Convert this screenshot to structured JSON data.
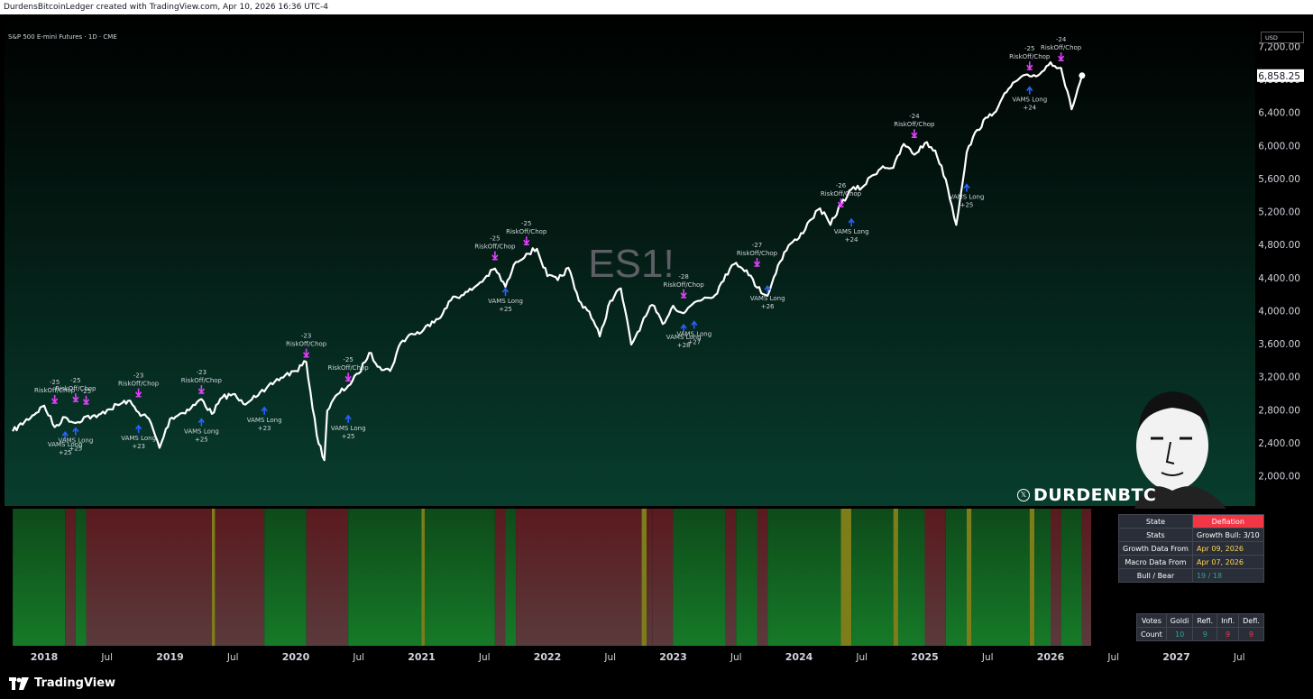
{
  "header": {
    "credit": "DurdensBitcoinLedger created with TradingView.com, Apr 10, 2026 16:36 UTC-4",
    "symbol_title": "S&P 500 E-mini Futures · 1D · CME",
    "currency": "USD",
    "watermark": "ES1!"
  },
  "brand": {
    "x_glyph": "𝕏",
    "name": "DURDENBTC"
  },
  "footer": {
    "logo_text": "TradingView"
  },
  "colors": {
    "bull_green": "#0f5e1e",
    "bear_red": "#5a1a1e",
    "yellow_stripe": "#7d7d1a",
    "deflation_red": "#f23645",
    "price_line": "#ffffff",
    "arrow_up": "#2962ff",
    "arrow_down": "#e040fb"
  },
  "state_table": {
    "rows": [
      {
        "label": "State",
        "value": "Deflation"
      },
      {
        "label": "Stats",
        "value": "Growth Bull: 3/10"
      },
      {
        "label": "Growth Data From",
        "value": "Apr 09, 2026"
      },
      {
        "label": "Macro Data From",
        "value": "Apr 07, 2026"
      },
      {
        "label": "Bull / Bear",
        "value": "19 / 18"
      }
    ]
  },
  "votes_table": {
    "headers": [
      "Votes",
      "Goldi",
      "Refl.",
      "Infl.",
      "Defl."
    ],
    "row_label": "Count",
    "values": [
      "10",
      "9",
      "9",
      "9"
    ]
  },
  "chart_data": {
    "type": "line",
    "title": "S&P 500 E-mini Futures · 1D · CME",
    "x_ticks": [
      "2018",
      "Jul",
      "2019",
      "Jul",
      "2020",
      "Jul",
      "2021",
      "Jul",
      "2022",
      "Jul",
      "2023",
      "Jul",
      "2024",
      "Jul",
      "2025",
      "Jul",
      "2026",
      "Jul",
      "2027",
      "Jul"
    ],
    "y_ticks": [
      "7,200.00",
      "6,800.00",
      "6,400.00",
      "6,000.00",
      "5,600.00",
      "5,200.00",
      "4,800.00",
      "4,400.00",
      "4,000.00",
      "3,600.00",
      "3,200.00",
      "2,800.00",
      "2,400.00",
      "2,000.00"
    ],
    "ylim": [
      1750,
      7600
    ],
    "last_price": "6,858.25",
    "series": [
      {
        "values": [
          [
            "2017-10",
            2550
          ],
          [
            "2018-01",
            2860
          ],
          [
            "2018-02",
            2600
          ],
          [
            "2018-03",
            2720
          ],
          [
            "2018-04",
            2650
          ],
          [
            "2018-05",
            2730
          ],
          [
            "2018-06",
            2720
          ],
          [
            "2018-07",
            2810
          ],
          [
            "2018-09",
            2920
          ],
          [
            "2018-10",
            2780
          ],
          [
            "2018-11",
            2700
          ],
          [
            "2018-12",
            2350
          ],
          [
            "2019-01",
            2700
          ],
          [
            "2019-03",
            2830
          ],
          [
            "2019-04",
            2940
          ],
          [
            "2019-05",
            2760
          ],
          [
            "2019-06",
            2960
          ],
          [
            "2019-07",
            3000
          ],
          [
            "2019-08",
            2880
          ],
          [
            "2019-09",
            2980
          ],
          [
            "2019-10",
            3030
          ],
          [
            "2019-11",
            3150
          ],
          [
            "2019-12",
            3230
          ],
          [
            "2020-01",
            3280
          ],
          [
            "2020-02",
            3390
          ],
          [
            "2020-03",
            2500
          ],
          [
            "2020-03-23",
            2200
          ],
          [
            "2020-04",
            2800
          ],
          [
            "2020-05",
            3000
          ],
          [
            "2020-06",
            3100
          ],
          [
            "2020-07",
            3250
          ],
          [
            "2020-08",
            3500
          ],
          [
            "2020-09",
            3330
          ],
          [
            "2020-10",
            3280
          ],
          [
            "2020-11",
            3620
          ],
          [
            "2020-12",
            3730
          ],
          [
            "2021-01",
            3750
          ],
          [
            "2021-02",
            3880
          ],
          [
            "2021-03",
            3970
          ],
          [
            "2021-04",
            4180
          ],
          [
            "2021-05",
            4200
          ],
          [
            "2021-06",
            4290
          ],
          [
            "2021-07",
            4400
          ],
          [
            "2021-08",
            4520
          ],
          [
            "2021-09",
            4300
          ],
          [
            "2021-10",
            4600
          ],
          [
            "2021-11",
            4700
          ],
          [
            "2021-12",
            4760
          ],
          [
            "2022-01",
            4430
          ],
          [
            "2022-02",
            4380
          ],
          [
            "2022-03",
            4530
          ],
          [
            "2022-04",
            4130
          ],
          [
            "2022-05",
            4000
          ],
          [
            "2022-06",
            3700
          ],
          [
            "2022-07",
            4130
          ],
          [
            "2022-08",
            4280
          ],
          [
            "2022-09",
            3600
          ],
          [
            "2022-10",
            3850
          ],
          [
            "2022-11",
            4080
          ],
          [
            "2022-12",
            3850
          ],
          [
            "2023-01",
            4070
          ],
          [
            "2023-02",
            3980
          ],
          [
            "2023-03",
            4110
          ],
          [
            "2023-04",
            4170
          ],
          [
            "2023-05",
            4200
          ],
          [
            "2023-06",
            4450
          ],
          [
            "2023-07",
            4590
          ],
          [
            "2023-08",
            4500
          ],
          [
            "2023-09",
            4290
          ],
          [
            "2023-10",
            4190
          ],
          [
            "2023-11",
            4560
          ],
          [
            "2023-12",
            4800
          ],
          [
            "2024-01",
            4890
          ],
          [
            "2024-02",
            5100
          ],
          [
            "2024-03",
            5250
          ],
          [
            "2024-04",
            5050
          ],
          [
            "2024-05",
            5300
          ],
          [
            "2024-06",
            5480
          ],
          [
            "2024-07",
            5500
          ],
          [
            "2024-08",
            5650
          ],
          [
            "2024-09",
            5760
          ],
          [
            "2024-10",
            5740
          ],
          [
            "2024-11",
            6030
          ],
          [
            "2024-12",
            5900
          ],
          [
            "2025-01",
            6040
          ],
          [
            "2025-02",
            5950
          ],
          [
            "2025-03",
            5600
          ],
          [
            "2025-04",
            5050
          ],
          [
            "2025-05",
            5930
          ],
          [
            "2025-06",
            6200
          ],
          [
            "2025-07",
            6350
          ],
          [
            "2025-08",
            6480
          ],
          [
            "2025-09",
            6700
          ],
          [
            "2025-10",
            6820
          ],
          [
            "2025-11",
            6850
          ],
          [
            "2025-12",
            6880
          ],
          [
            "2026-01",
            7020
          ],
          [
            "2026-02",
            6950
          ],
          [
            "2026-03",
            6450
          ],
          [
            "2026-04",
            6858
          ]
        ]
      }
    ],
    "signals": [
      {
        "type": "down",
        "date": "2018-02",
        "price": 2880,
        "text": [
          "-25",
          "RiskOff/Chop"
        ]
      },
      {
        "type": "down",
        "date": "2018-04",
        "price": 2900,
        "text": [
          "-25",
          "RiskOff/Chop"
        ]
      },
      {
        "type": "down",
        "date": "2018-05",
        "price": 2870,
        "text": [
          "-25"
        ]
      },
      {
        "type": "up",
        "date": "2018-03",
        "price": 2560,
        "text": [
          "VAMS Long",
          "+25"
        ]
      },
      {
        "type": "up",
        "date": "2018-04",
        "price": 2610,
        "text": [
          "VAMS Long",
          "+25"
        ]
      },
      {
        "type": "down",
        "date": "2018-10",
        "price": 2960,
        "text": [
          "-23",
          "RiskOff/Chop"
        ]
      },
      {
        "type": "up",
        "date": "2018-10",
        "price": 2640,
        "text": [
          "VAMS Long",
          "+23"
        ]
      },
      {
        "type": "down",
        "date": "2019-04",
        "price": 3000,
        "text": [
          "-23",
          "RiskOff/Chop"
        ]
      },
      {
        "type": "up",
        "date": "2019-04",
        "price": 2720,
        "text": [
          "VAMS Long",
          "+25"
        ]
      },
      {
        "type": "up",
        "date": "2019-10",
        "price": 2860,
        "text": [
          "VAMS Long",
          "+23"
        ]
      },
      {
        "type": "down",
        "date": "2020-02",
        "price": 3440,
        "text": [
          "-23",
          "RiskOff/Chop"
        ]
      },
      {
        "type": "down",
        "date": "2020-06",
        "price": 3150,
        "text": [
          "-25",
          "RiskOff/Chop"
        ]
      },
      {
        "type": "up",
        "date": "2020-06",
        "price": 2760,
        "text": [
          "VAMS Long",
          "+25"
        ]
      },
      {
        "type": "down",
        "date": "2021-08",
        "price": 4620,
        "text": [
          "-25",
          "RiskOff/Chop"
        ]
      },
      {
        "type": "down",
        "date": "2021-11",
        "price": 4800,
        "text": [
          "-25",
          "RiskOff/Chop"
        ]
      },
      {
        "type": "up",
        "date": "2021-09",
        "price": 4300,
        "text": [
          "VAMS Long",
          "+25"
        ]
      },
      {
        "type": "down",
        "date": "2023-02",
        "price": 4160,
        "text": [
          "-28",
          "RiskOff/Chop"
        ]
      },
      {
        "type": "up",
        "date": "2023-02",
        "price": 3860,
        "text": [
          "VAMS Long",
          "+28"
        ]
      },
      {
        "type": "up",
        "date": "2023-03",
        "price": 3900,
        "text": [
          "VAMS Long",
          "+27"
        ]
      },
      {
        "type": "down",
        "date": "2023-09",
        "price": 4540,
        "text": [
          "-27",
          "RiskOff/Chop"
        ]
      },
      {
        "type": "up",
        "date": "2023-10",
        "price": 4330,
        "text": [
          "VAMS Long",
          "+26"
        ]
      },
      {
        "type": "down",
        "date": "2024-05",
        "price": 5260,
        "text": [
          "-26",
          "RiskOff/Chop"
        ]
      },
      {
        "type": "up",
        "date": "2024-06",
        "price": 5140,
        "text": [
          "VAMS Long",
          "+24"
        ]
      },
      {
        "type": "down",
        "date": "2024-12",
        "price": 6100,
        "text": [
          "-24",
          "RiskOff/Chop"
        ]
      },
      {
        "type": "up",
        "date": "2025-05",
        "price": 5560,
        "text": [
          "VAMS Long",
          "+25"
        ]
      },
      {
        "type": "down",
        "date": "2025-11",
        "price": 6920,
        "text": [
          "-25",
          "RiskOff/Chop"
        ]
      },
      {
        "type": "up",
        "date": "2025-11",
        "price": 6740,
        "text": [
          "VAMS Long",
          "+24"
        ]
      },
      {
        "type": "down",
        "date": "2026-02",
        "price": 7030,
        "text": [
          "-24",
          "RiskOff/Chop"
        ]
      }
    ],
    "regime_bands": [
      [
        "2017-10",
        "2018-03",
        "bull"
      ],
      [
        "2018-03",
        "2018-04",
        "bear"
      ],
      [
        "2018-04",
        "2018-05",
        "bull"
      ],
      [
        "2018-05",
        "2018-09",
        "bear"
      ],
      [
        "2018-09",
        "2019-05",
        "bear"
      ],
      [
        "2019-05",
        "2019-05-10",
        "yellow"
      ],
      [
        "2019-05-10",
        "2019-10",
        "bear"
      ],
      [
        "2019-10",
        "2020-02",
        "bull"
      ],
      [
        "2020-02",
        "2020-06",
        "bear"
      ],
      [
        "2020-06",
        "2021-08",
        "bull"
      ],
      [
        "2021-01",
        "2021-01-10",
        "yellow"
      ],
      [
        "2021-08",
        "2021-09",
        "bear"
      ],
      [
        "2021-09",
        "2021-10",
        "bull"
      ],
      [
        "2021-10",
        "2022-11",
        "bear"
      ],
      [
        "2022-10",
        "2022-10-15",
        "yellow"
      ],
      [
        "2022-11",
        "2023-01",
        "bear"
      ],
      [
        "2023-01",
        "2023-06",
        "bull"
      ],
      [
        "2023-06",
        "2023-07",
        "bear"
      ],
      [
        "2023-07",
        "2023-09",
        "bull"
      ],
      [
        "2023-09",
        "2023-10",
        "bear"
      ],
      [
        "2023-10",
        "2024-05",
        "bull"
      ],
      [
        "2024-05",
        "2024-06",
        "yellow"
      ],
      [
        "2024-06",
        "2024-10",
        "bull"
      ],
      [
        "2024-10",
        "2024-10-15",
        "yellow"
      ],
      [
        "2024-10-15",
        "2025-01",
        "bull"
      ],
      [
        "2025-01",
        "2025-03",
        "bear"
      ],
      [
        "2025-03",
        "2025-05",
        "bull"
      ],
      [
        "2025-05",
        "2025-05-15",
        "yellow"
      ],
      [
        "2025-05-15",
        "2025-11",
        "bull"
      ],
      [
        "2025-11",
        "2025-11-15",
        "yellow"
      ],
      [
        "2025-11-15",
        "2026-01",
        "bull"
      ],
      [
        "2026-01",
        "2026-02",
        "bear"
      ],
      [
        "2026-02",
        "2026-04",
        "bull"
      ],
      [
        "2026-04",
        "2026-05",
        "bear"
      ]
    ]
  }
}
